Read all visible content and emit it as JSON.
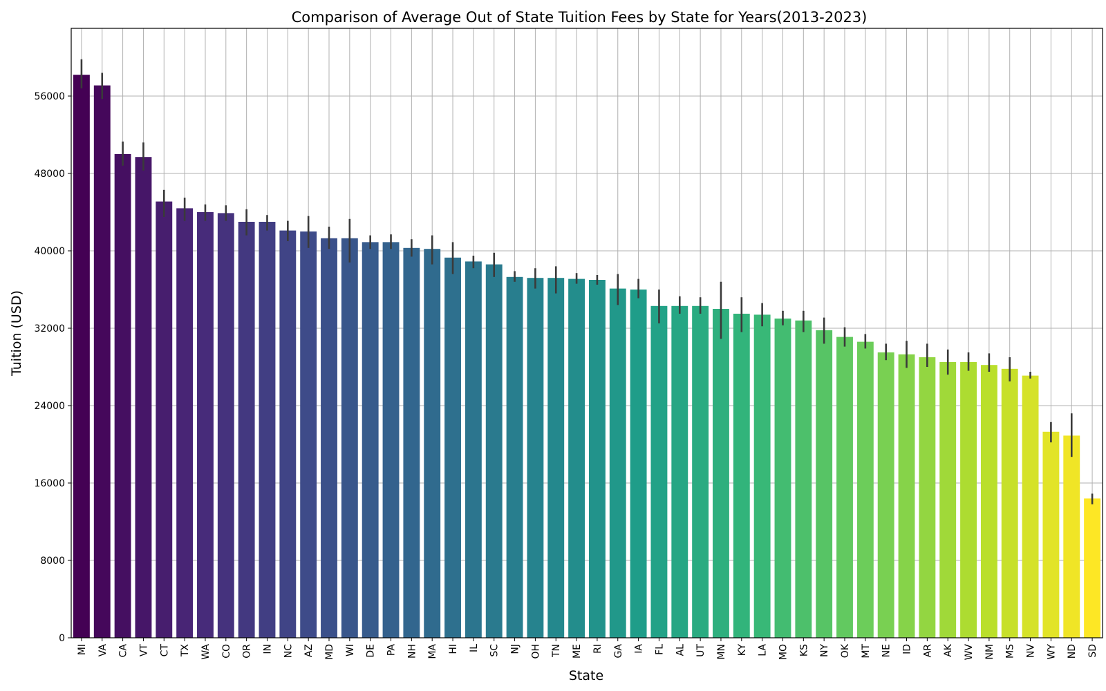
{
  "chart_data": {
    "type": "bar",
    "title": "Comparison of Average Out of State Tuition Fees by State for Years(2013-2023)",
    "xlabel": "State",
    "ylabel": "Tuition (USD)",
    "ylim": [
      0,
      63000
    ],
    "yticks": [
      0,
      8000,
      16000,
      24000,
      32000,
      40000,
      48000,
      56000
    ],
    "grid": true,
    "palette": "viridis",
    "categories": [
      "MI",
      "VA",
      "CA",
      "VT",
      "CT",
      "TX",
      "WA",
      "CO",
      "OR",
      "IN",
      "NC",
      "AZ",
      "MD",
      "WI",
      "DE",
      "PA",
      "NH",
      "MA",
      "HI",
      "IL",
      "SC",
      "NJ",
      "OH",
      "TN",
      "ME",
      "RI",
      "GA",
      "IA",
      "FL",
      "AL",
      "UT",
      "MN",
      "KY",
      "LA",
      "MO",
      "KS",
      "NY",
      "OK",
      "MT",
      "NE",
      "ID",
      "AR",
      "AK",
      "WV",
      "NM",
      "MS",
      "NV",
      "WY",
      "ND",
      "SD"
    ],
    "values": [
      58200,
      57100,
      50000,
      49700,
      45100,
      44400,
      44000,
      43900,
      43000,
      43000,
      42100,
      42000,
      41300,
      41300,
      40900,
      40900,
      40300,
      40200,
      39300,
      38900,
      38600,
      37300,
      37200,
      37200,
      37100,
      37000,
      36100,
      36000,
      34300,
      34300,
      34300,
      34000,
      33500,
      33400,
      33000,
      32800,
      31800,
      31100,
      30600,
      29500,
      29300,
      29000,
      28500,
      28500,
      28200,
      27800,
      27100,
      21300,
      20900,
      14400
    ],
    "error_low": [
      56800,
      55700,
      48800,
      48300,
      43500,
      43100,
      43100,
      43100,
      41600,
      42100,
      41000,
      40300,
      40200,
      38800,
      40200,
      40200,
      39400,
      38600,
      37600,
      38200,
      37300,
      36800,
      36100,
      35600,
      36600,
      36500,
      34400,
      35100,
      32500,
      33500,
      33500,
      30900,
      31600,
      32200,
      32300,
      31600,
      30400,
      30100,
      29900,
      28700,
      27900,
      28000,
      27200,
      27600,
      27500,
      26500,
      26800,
      20200,
      18700,
      13800
    ],
    "error_high": [
      59800,
      58400,
      51300,
      51200,
      46300,
      45500,
      44800,
      44700,
      44300,
      43700,
      43100,
      43600,
      42500,
      43300,
      41600,
      41700,
      41200,
      41600,
      40900,
      39500,
      39800,
      37900,
      38200,
      38400,
      37700,
      37500,
      37600,
      37100,
      36000,
      35300,
      35200,
      36800,
      35200,
      34600,
      33800,
      33800,
      33100,
      32100,
      31400,
      30400,
      30700,
      30400,
      29800,
      29500,
      29400,
      29000,
      27500,
      22300,
      23200,
      14900
    ]
  }
}
